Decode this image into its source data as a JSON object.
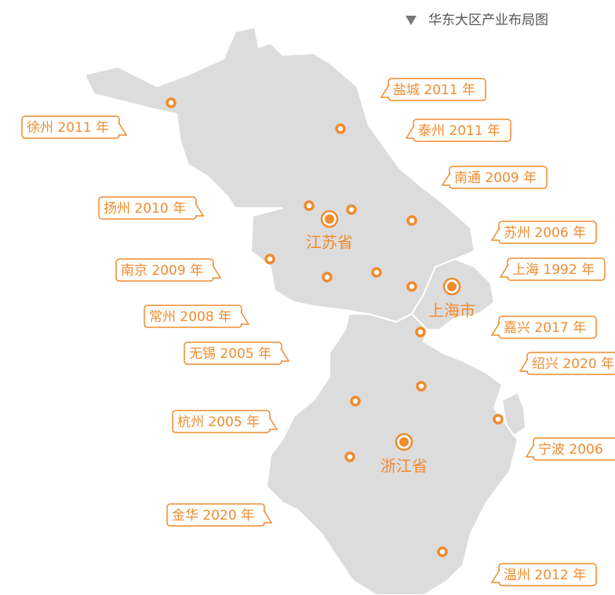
{
  "header": {
    "title": "华东大区产业布局图"
  },
  "regions": [
    {
      "label": "江苏省"
    },
    {
      "label": "上海市"
    },
    {
      "label": "浙江省"
    }
  ],
  "callouts": [
    {
      "label": "徐州 2011 年"
    },
    {
      "label": "盐城 2011 年"
    },
    {
      "label": "泰州 2011 年"
    },
    {
      "label": "南通 2009 年"
    },
    {
      "label": "扬州 2010 年"
    },
    {
      "label": "苏州 2006 年"
    },
    {
      "label": "南京 2009 年"
    },
    {
      "label": "上海 1992 年"
    },
    {
      "label": "常州 2008 年"
    },
    {
      "label": "嘉兴 2017 年"
    },
    {
      "label": "无锡 2005 年"
    },
    {
      "label": "绍兴 2020 年"
    },
    {
      "label": "杭州 2005 年"
    },
    {
      "label": "宁波 2006"
    },
    {
      "label": "金华 2020 年"
    },
    {
      "label": "温州 2012 年"
    }
  ]
}
